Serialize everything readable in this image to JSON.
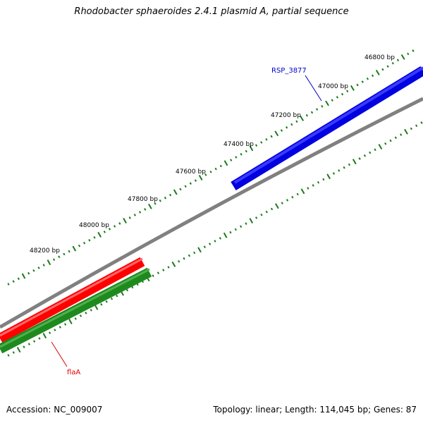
{
  "title": "Rhodobacter sphaeroides 2.4.1 plasmid A, partial sequence",
  "footer": {
    "accession": "Accession: NC_009007",
    "summary": "Topology: linear; Length: 114,045 bp; Genes: 87"
  },
  "colors": {
    "backbone": "#808080",
    "tick": "#1a7a1a",
    "forward_gene": "#0000e0",
    "reverse_gene": "#ff0000",
    "orf": "#1e8a1e"
  },
  "tick_labels": [
    "46800 bp",
    "47000 bp",
    "47200 bp",
    "47400 bp",
    "47600 bp",
    "47800 bp",
    "48000 bp",
    "48200 bp"
  ],
  "genes": [
    {
      "name": "RSP_3877",
      "color": "#0000cc"
    },
    {
      "name": "flaA",
      "color": "#dd0000"
    }
  ]
}
